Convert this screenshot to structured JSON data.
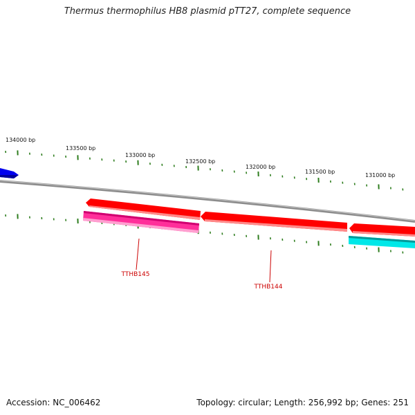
{
  "title": "Thermus thermophilus HB8 plasmid pTT27, complete sequence",
  "footer": {
    "accession": "Accession: NC_006462",
    "summary": "Topology: circular; Length: 256,992 bp; Genes: 251"
  },
  "colors": {
    "backbone": "#8c8c8c",
    "tick": "#2e7d1e",
    "gene_red": "#ff0000",
    "gene_magenta": "#ff3fa0",
    "gene_cyan": "#00e5e5",
    "gene_blue": "#0000ee",
    "label": "#cc0000"
  },
  "scale": {
    "labels": [
      "134000 bp",
      "133500 bp",
      "133000 bp",
      "132500 bp",
      "132000 bp",
      "131500 bp",
      "131000 bp"
    ]
  },
  "genes": {
    "labels": [
      "TTHB145",
      "TTHB144"
    ]
  }
}
